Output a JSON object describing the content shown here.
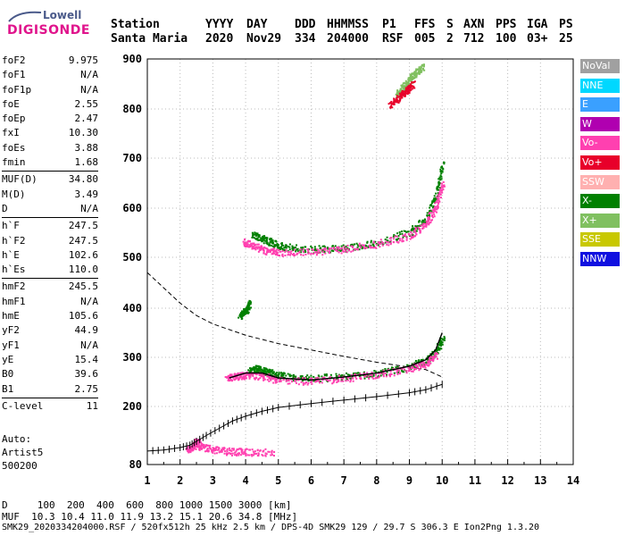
{
  "logo": {
    "line1": "Lowell",
    "line2": "DIGISONDE"
  },
  "header": {
    "labels": [
      "Station",
      "YYYY",
      "DAY",
      "DDD",
      "HHMMSS",
      "P1",
      "FFS",
      "S",
      "AXN",
      "PPS",
      "IGA",
      "PS"
    ],
    "values": [
      "Santa Maria",
      "2020",
      "Nov29",
      "334",
      "204000",
      "RSF",
      "005",
      "2",
      "712",
      "100",
      "03+",
      "25"
    ]
  },
  "params_group1": [
    {
      "k": "foF2",
      "v": "9.975"
    },
    {
      "k": "foF1",
      "v": "N/A"
    },
    {
      "k": "foF1p",
      "v": "N/A"
    },
    {
      "k": "foE",
      "v": "2.55"
    },
    {
      "k": "foEp",
      "v": "2.47"
    },
    {
      "k": "fxI",
      "v": "10.30"
    },
    {
      "k": "foEs",
      "v": "3.88"
    },
    {
      "k": "fmin",
      "v": "1.68"
    }
  ],
  "params_group2": [
    {
      "k": "MUF(D)",
      "v": "34.80"
    },
    {
      "k": "M(D)",
      "v": "3.49"
    },
    {
      "k": "D",
      "v": "N/A"
    }
  ],
  "params_group3": [
    {
      "k": "h`F",
      "v": "247.5"
    },
    {
      "k": "h`F2",
      "v": "247.5"
    },
    {
      "k": "h`E",
      "v": "102.6"
    },
    {
      "k": "h`Es",
      "v": "110.0"
    }
  ],
  "params_group4": [
    {
      "k": "hmF2",
      "v": "245.5"
    },
    {
      "k": "hmF1",
      "v": "N/A"
    },
    {
      "k": "hmE",
      "v": "105.6"
    },
    {
      "k": "yF2",
      "v": "44.9"
    },
    {
      "k": "yF1",
      "v": "N/A"
    },
    {
      "k": "yE",
      "v": "15.4"
    },
    {
      "k": "B0",
      "v": "39.6"
    },
    {
      "k": "B1",
      "v": "2.75"
    }
  ],
  "params_group5": [
    {
      "k": "C-level",
      "v": "11"
    }
  ],
  "auto": {
    "line1": "Auto:",
    "line2": "Artist5",
    "line3": "500200"
  },
  "legend": [
    {
      "label": "NoVal",
      "color": "#a0a0a0",
      "text": "#ffffff"
    },
    {
      "label": "NNE",
      "color": "#00d8ff",
      "text": "#ffffff"
    },
    {
      "label": "E",
      "color": "#3aa0ff",
      "text": "#ffffff"
    },
    {
      "label": "W",
      "color": "#b000b0",
      "text": "#ffffff"
    },
    {
      "label": "Vo-",
      "color": "#ff40b0",
      "text": "#ffffff"
    },
    {
      "label": "Vo+",
      "color": "#e8002a",
      "text": "#ffffff"
    },
    {
      "label": "SSW",
      "color": "#ffb0b0",
      "text": "#ffffff"
    },
    {
      "label": "X-",
      "color": "#008000",
      "text": "#ffffff"
    },
    {
      "label": "X+",
      "color": "#80c060",
      "text": "#ffffff"
    },
    {
      "label": "SSE",
      "color": "#c8c800",
      "text": "#ffffff"
    },
    {
      "label": "NNW",
      "color": "#1010e0",
      "text": "#ffffff"
    }
  ],
  "mufs": {
    "dist_label": "D",
    "dist_values": "100  200  400  600  800 1000 1500 3000 [km]",
    "muf_label": "MUF",
    "muf_values": "10.3 10.4 11.0 11.9 13.2 15.1 20.6 34.8 [MHz]"
  },
  "footer": "SMK29_2020334204000.RSF / 520fx512h 25 kHz 2.5 km / DPS-4D SMK29 129 / 29.7 S 306.3 E Ion2Png 1.3.20",
  "chart_data": {
    "type": "scatter",
    "xlim": [
      1,
      14
    ],
    "ylim": [
      80,
      900
    ],
    "x_ticks": [
      1,
      2,
      3,
      4,
      5,
      6,
      7,
      8,
      9,
      10,
      11,
      12,
      13,
      14
    ],
    "y_ticks": [
      80,
      200,
      300,
      400,
      500,
      600,
      700,
      800,
      900
    ],
    "grid": "dotted",
    "legend_position": "right",
    "series": [
      {
        "name": "X-",
        "color": "#008000",
        "points": [
          [
            4.1,
            272
          ],
          [
            4.3,
            278
          ],
          [
            4.5,
            275
          ],
          [
            4.8,
            268
          ],
          [
            5.2,
            262
          ],
          [
            6,
            258
          ],
          [
            7,
            262
          ],
          [
            8,
            268
          ],
          [
            9,
            282
          ],
          [
            9.5,
            295
          ],
          [
            9.8,
            312
          ],
          [
            10,
            340
          ]
        ]
      },
      {
        "name": "Vo-",
        "color": "#ff40b0",
        "points": [
          [
            3.4,
            258
          ],
          [
            3.7,
            262
          ],
          [
            4,
            265
          ],
          [
            4.5,
            262
          ],
          [
            5,
            255
          ],
          [
            6,
            252
          ],
          [
            7,
            258
          ],
          [
            8,
            266
          ],
          [
            9,
            278
          ],
          [
            9.5,
            288
          ],
          [
            9.8,
            305
          ]
        ]
      },
      {
        "name": "X-",
        "color": "#008000",
        "points": [
          [
            4.2,
            545
          ],
          [
            4.5,
            540
          ],
          [
            4.8,
            530
          ],
          [
            5.2,
            522
          ],
          [
            6,
            517
          ],
          [
            7,
            520
          ],
          [
            8,
            530
          ],
          [
            9,
            552
          ],
          [
            9.5,
            580
          ],
          [
            9.8,
            625
          ],
          [
            10,
            690
          ]
        ]
      },
      {
        "name": "Vo-",
        "color": "#ff40b0",
        "points": [
          [
            3.9,
            532
          ],
          [
            4.2,
            525
          ],
          [
            4.6,
            515
          ],
          [
            5,
            510
          ],
          [
            6,
            512
          ],
          [
            7,
            518
          ],
          [
            8,
            528
          ],
          [
            9,
            545
          ],
          [
            9.5,
            568
          ],
          [
            9.8,
            605
          ],
          [
            10,
            650
          ]
        ]
      },
      {
        "name": "X+",
        "color": "#80c060",
        "points": [
          [
            8.6,
            830
          ],
          [
            8.8,
            845
          ],
          [
            9,
            860
          ],
          [
            9.2,
            875
          ],
          [
            9.4,
            885
          ]
        ]
      },
      {
        "name": "Vo+",
        "color": "#e8002a",
        "points": [
          [
            8.4,
            810
          ],
          [
            8.7,
            825
          ],
          [
            8.9,
            838
          ],
          [
            9.1,
            850
          ]
        ]
      },
      {
        "name": "X-",
        "color": "#008000",
        "points": [
          [
            3.8,
            385
          ],
          [
            4,
            395
          ],
          [
            4.1,
            410
          ]
        ]
      },
      {
        "name": "Vo-",
        "color": "#ff40b0",
        "points": [
          [
            2.2,
            112
          ],
          [
            2.4,
            118
          ],
          [
            2.5,
            130
          ],
          [
            2.6,
            118
          ],
          [
            3,
            112
          ],
          [
            3.5,
            108
          ],
          [
            4,
            107
          ],
          [
            4.8,
            106
          ]
        ]
      }
    ],
    "profile_line": {
      "name": "profile",
      "points": [
        [
          1,
          108
        ],
        [
          1.5,
          110
        ],
        [
          2,
          115
        ],
        [
          2.3,
          120
        ],
        [
          2.5,
          128
        ],
        [
          2.8,
          140
        ],
        [
          3.2,
          155
        ],
        [
          3.6,
          170
        ],
        [
          4,
          180
        ],
        [
          4.5,
          190
        ],
        [
          5,
          198
        ],
        [
          6,
          206
        ],
        [
          7,
          213
        ],
        [
          8,
          220
        ],
        [
          9,
          228
        ],
        [
          9.5,
          234
        ],
        [
          10,
          245
        ]
      ]
    },
    "dashed_line": {
      "name": "muf-dashed",
      "points": [
        [
          1,
          470
        ],
        [
          1.5,
          440
        ],
        [
          2,
          410
        ],
        [
          2.5,
          385
        ],
        [
          3,
          368
        ],
        [
          4,
          345
        ],
        [
          5,
          328
        ],
        [
          6,
          315
        ],
        [
          7,
          302
        ],
        [
          8,
          290
        ],
        [
          9,
          280
        ],
        [
          9.5,
          275
        ],
        [
          10,
          260
        ]
      ]
    },
    "black_trace": {
      "name": "trace",
      "points": [
        [
          3.5,
          258
        ],
        [
          4,
          268
        ],
        [
          4.5,
          268
        ],
        [
          5,
          258
        ],
        [
          6,
          254
        ],
        [
          7,
          260
        ],
        [
          8,
          268
        ],
        [
          9,
          282
        ],
        [
          9.5,
          295
        ],
        [
          9.8,
          315
        ],
        [
          10,
          350
        ]
      ]
    }
  }
}
